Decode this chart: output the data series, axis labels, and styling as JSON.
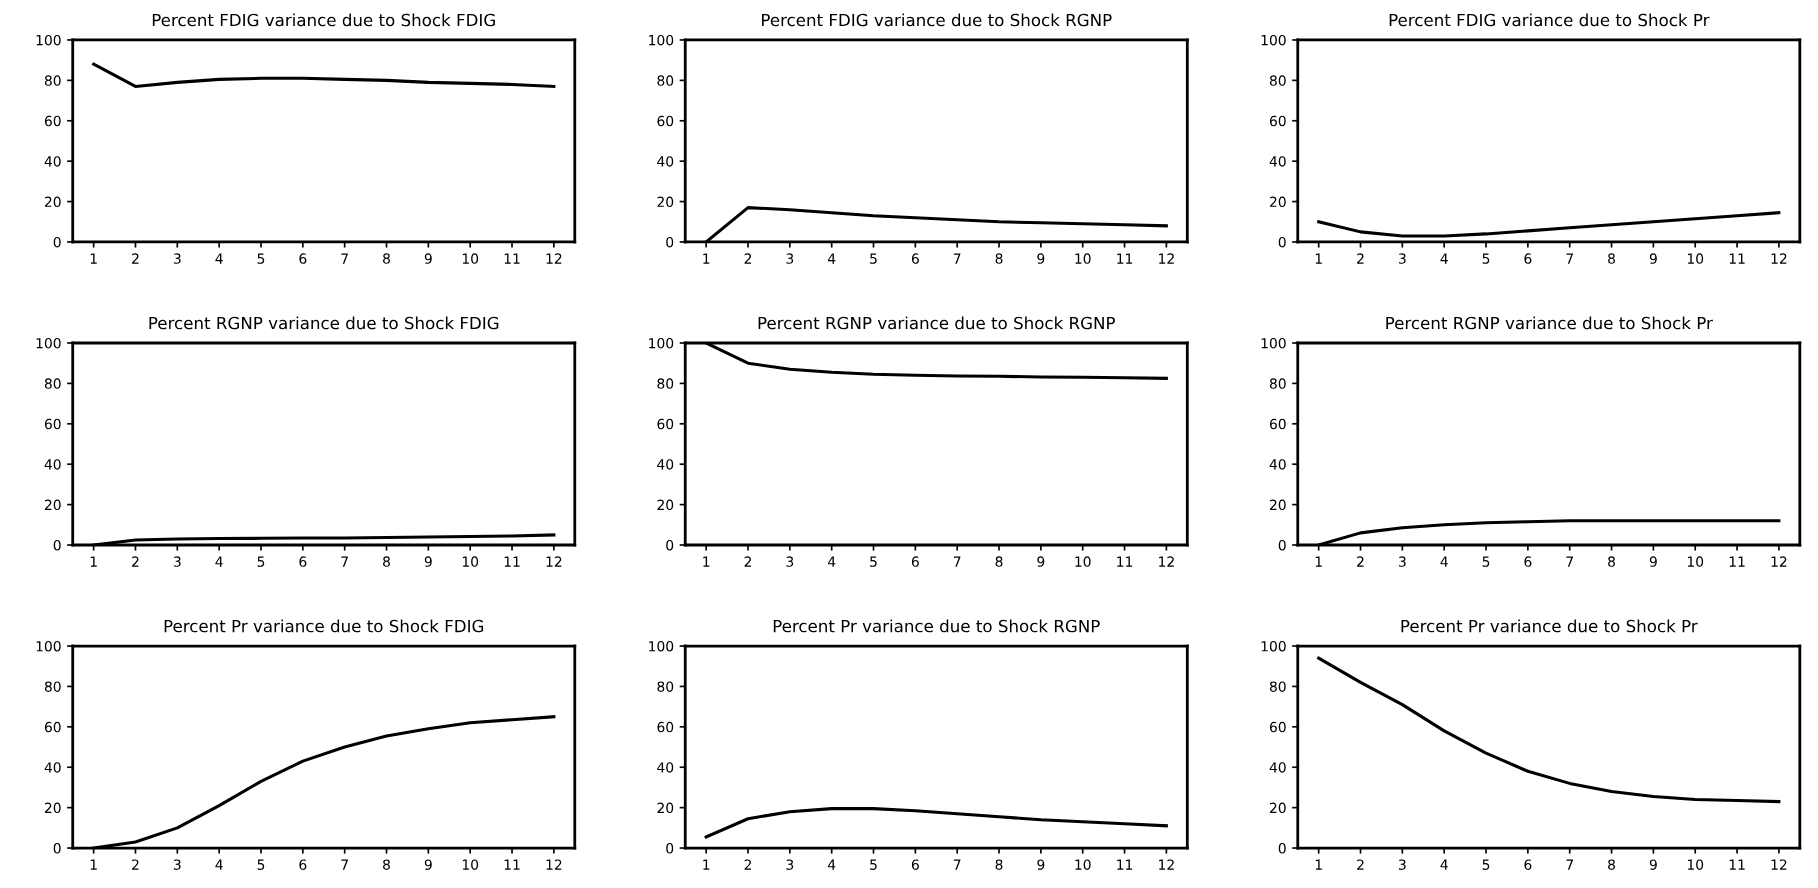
{
  "chart_data": [
    {
      "type": "line",
      "title": "Percent FDIG variance due to Shock FDIG",
      "categories": [
        "1",
        "2",
        "3",
        "4",
        "5",
        "6",
        "7",
        "8",
        "9",
        "10",
        "11",
        "12"
      ],
      "values": [
        88,
        77,
        79,
        80.5,
        81,
        81,
        80.5,
        80,
        79,
        78.5,
        78,
        77
      ],
      "color": "#000000",
      "ylim": [
        0,
        100
      ],
      "yticks": [
        0,
        20,
        40,
        60,
        80,
        100
      ]
    },
    {
      "type": "line",
      "title": "Percent FDIG variance due to Shock RGNP",
      "categories": [
        "1",
        "2",
        "3",
        "4",
        "5",
        "6",
        "7",
        "8",
        "9",
        "10",
        "11",
        "12"
      ],
      "values": [
        0,
        17,
        16,
        14.5,
        13,
        12,
        11,
        10,
        9.5,
        9,
        8.5,
        8
      ],
      "color": "#000000",
      "ylim": [
        0,
        100
      ],
      "yticks": [
        0,
        20,
        40,
        60,
        80,
        100
      ]
    },
    {
      "type": "line",
      "title": "Percent FDIG variance due to Shock Pr",
      "categories": [
        "1",
        "2",
        "3",
        "4",
        "5",
        "6",
        "7",
        "8",
        "9",
        "10",
        "11",
        "12"
      ],
      "values": [
        10,
        5,
        3,
        3,
        4,
        5.5,
        7,
        8.5,
        10,
        11.5,
        13,
        14.5
      ],
      "color": "#000000",
      "ylim": [
        0,
        100
      ],
      "yticks": [
        0,
        20,
        40,
        60,
        80,
        100
      ]
    },
    {
      "type": "line",
      "title": "Percent RGNP variance due to Shock FDIG",
      "categories": [
        "1",
        "2",
        "3",
        "4",
        "5",
        "6",
        "7",
        "8",
        "9",
        "10",
        "11",
        "12"
      ],
      "values": [
        0,
        2.5,
        3,
        3.2,
        3.3,
        3.5,
        3.5,
        3.7,
        4,
        4.2,
        4.5,
        5
      ],
      "color": "#000000",
      "ylim": [
        0,
        100
      ],
      "yticks": [
        0,
        20,
        40,
        60,
        80,
        100
      ]
    },
    {
      "type": "line",
      "title": "Percent RGNP variance due to Shock RGNP",
      "categories": [
        "1",
        "2",
        "3",
        "4",
        "5",
        "6",
        "7",
        "8",
        "9",
        "10",
        "11",
        "12"
      ],
      "values": [
        100,
        90,
        87,
        85.5,
        84.5,
        84,
        83.7,
        83.5,
        83.2,
        83,
        82.8,
        82.5
      ],
      "color": "#000000",
      "ylim": [
        0,
        100
      ],
      "yticks": [
        0,
        20,
        40,
        60,
        80,
        100
      ]
    },
    {
      "type": "line",
      "title": "Percent RGNP variance due to Shock Pr",
      "categories": [
        "1",
        "2",
        "3",
        "4",
        "5",
        "6",
        "7",
        "8",
        "9",
        "10",
        "11",
        "12"
      ],
      "values": [
        0,
        6,
        8.5,
        10,
        11,
        11.5,
        12,
        12,
        12,
        12,
        12,
        12
      ],
      "color": "#000000",
      "ylim": [
        0,
        100
      ],
      "yticks": [
        0,
        20,
        40,
        60,
        80,
        100
      ]
    },
    {
      "type": "line",
      "title": "Percent Pr variance due to Shock FDIG",
      "categories": [
        "1",
        "2",
        "3",
        "4",
        "5",
        "6",
        "7",
        "8",
        "9",
        "10",
        "11",
        "12"
      ],
      "values": [
        0,
        3,
        10,
        21,
        33,
        43,
        50,
        55.5,
        59,
        62,
        63.5,
        65
      ],
      "color": "#000000",
      "ylim": [
        0,
        100
      ],
      "yticks": [
        0,
        20,
        40,
        60,
        80,
        100
      ]
    },
    {
      "type": "line",
      "title": "Percent Pr variance due to Shock RGNP",
      "categories": [
        "1",
        "2",
        "3",
        "4",
        "5",
        "6",
        "7",
        "8",
        "9",
        "10",
        "11",
        "12"
      ],
      "values": [
        5.5,
        14.5,
        18,
        19.5,
        19.5,
        18.5,
        17,
        15.5,
        14,
        13,
        12,
        11
      ],
      "color": "#000000",
      "ylim": [
        0,
        100
      ],
      "yticks": [
        0,
        20,
        40,
        60,
        80,
        100
      ]
    },
    {
      "type": "line",
      "title": "Percent Pr variance due to Shock Pr",
      "categories": [
        "1",
        "2",
        "3",
        "4",
        "5",
        "6",
        "7",
        "8",
        "9",
        "10",
        "11",
        "12"
      ],
      "values": [
        94,
        82,
        71,
        58,
        47,
        38,
        32,
        28,
        25.5,
        24,
        23.5,
        23
      ],
      "color": "#000000",
      "ylim": [
        0,
        100
      ],
      "yticks": [
        0,
        20,
        40,
        60,
        80,
        100
      ]
    }
  ]
}
